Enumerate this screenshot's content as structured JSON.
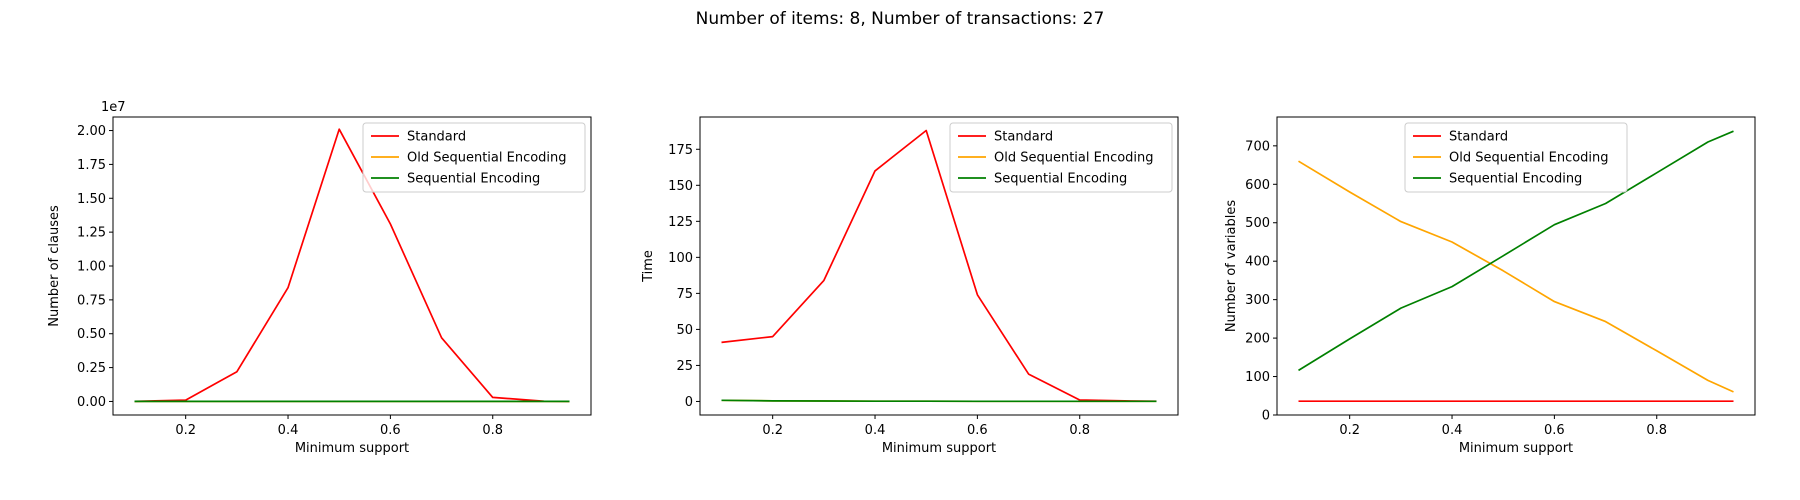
{
  "suptitle": "Number of items: 8, Number of transactions: 27",
  "colors": {
    "Standard": "#ff0000",
    "Old Sequential Encoding": "#ffa500",
    "Sequential Encoding": "#008000"
  },
  "chart_data": [
    {
      "type": "line",
      "xlabel": "Minimum support",
      "ylabel": "Number of clauses",
      "offset_text": "1e7",
      "xlim": [
        0.058,
        0.992
      ],
      "ylim": [
        -1000000.0,
        21000000.0
      ],
      "xticks": [
        0.2,
        0.4,
        0.6,
        0.8
      ],
      "xticklabels": [
        "0.2",
        "0.4",
        "0.6",
        "0.8"
      ],
      "yticks": [
        0,
        2500000,
        5000000,
        7500000,
        10000000,
        12500000,
        15000000,
        17500000,
        20000000
      ],
      "yticklabels": [
        "0.00",
        "0.25",
        "0.50",
        "0.75",
        "1.00",
        "1.25",
        "1.50",
        "1.75",
        "2.00"
      ],
      "legend_position": "upper right",
      "x": [
        0.1,
        0.2,
        0.3,
        0.4,
        0.5,
        0.6,
        0.7,
        0.8,
        0.9,
        0.95
      ],
      "series": [
        {
          "name": "Standard",
          "color": "#ff0000",
          "values": [
            5000,
            100000,
            2200000,
            8400000,
            20100000,
            13100000,
            4700000,
            300000,
            20000,
            5000
          ]
        },
        {
          "name": "Old Sequential Encoding",
          "color": "#ffa500",
          "values": [
            2000,
            2000,
            2000,
            2000,
            2000,
            2000,
            2000,
            2000,
            2000,
            2000
          ]
        },
        {
          "name": "Sequential Encoding",
          "color": "#008000",
          "values": [
            1000,
            1000,
            1000,
            1000,
            1000,
            1000,
            1000,
            1000,
            1000,
            1000
          ]
        }
      ]
    },
    {
      "type": "line",
      "xlabel": "Minimum support",
      "ylabel": "Time",
      "offset_text": "",
      "xlim": [
        0.058,
        0.992
      ],
      "ylim": [
        -9.4,
        197.4
      ],
      "xticks": [
        0.2,
        0.4,
        0.6,
        0.8
      ],
      "xticklabels": [
        "0.2",
        "0.4",
        "0.6",
        "0.8"
      ],
      "yticks": [
        0,
        25,
        50,
        75,
        100,
        125,
        150,
        175
      ],
      "yticklabels": [
        "0",
        "25",
        "50",
        "75",
        "100",
        "125",
        "150",
        "175"
      ],
      "legend_position": "upper right",
      "x": [
        0.1,
        0.2,
        0.3,
        0.4,
        0.5,
        0.6,
        0.7,
        0.8,
        0.9,
        0.95
      ],
      "series": [
        {
          "name": "Standard",
          "color": "#ff0000",
          "values": [
            41,
            45,
            84,
            160,
            188,
            74,
            19,
            1,
            0.3,
            0.2
          ]
        },
        {
          "name": "Old Sequential Encoding",
          "color": "#ffa500",
          "values": [
            0.8,
            0.4,
            0.3,
            0.2,
            0.2,
            0.1,
            0.1,
            0.1,
            0.1,
            0.1
          ]
        },
        {
          "name": "Sequential Encoding",
          "color": "#008000",
          "values": [
            0.8,
            0.4,
            0.3,
            0.2,
            0.2,
            0.1,
            0.1,
            0.1,
            0.1,
            0.1
          ]
        }
      ]
    },
    {
      "type": "line",
      "xlabel": "Minimum support",
      "ylabel": "Number of variables",
      "offset_text": "",
      "xlim": [
        0.058,
        0.992
      ],
      "ylim": [
        0,
        775
      ],
      "xticks": [
        0.2,
        0.4,
        0.6,
        0.8
      ],
      "xticklabels": [
        "0.2",
        "0.4",
        "0.6",
        "0.8"
      ],
      "yticks": [
        0,
        100,
        200,
        300,
        400,
        500,
        600,
        700
      ],
      "yticklabels": [
        "0",
        "100",
        "200",
        "300",
        "400",
        "500",
        "600",
        "700"
      ],
      "legend_position": "upper center",
      "x": [
        0.1,
        0.2,
        0.3,
        0.4,
        0.5,
        0.6,
        0.7,
        0.8,
        0.9,
        0.95
      ],
      "series": [
        {
          "name": "Standard",
          "color": "#ff0000",
          "values": [
            36,
            36,
            36,
            36,
            36,
            36,
            36,
            36,
            36,
            36
          ]
        },
        {
          "name": "Old Sequential Encoding",
          "color": "#ffa500",
          "values": [
            660,
            580,
            503,
            450,
            375,
            295,
            243,
            167,
            90,
            60
          ]
        },
        {
          "name": "Sequential Encoding",
          "color": "#008000",
          "values": [
            116,
            198,
            278,
            334,
            414,
            495,
            550,
            630,
            710,
            738
          ]
        }
      ]
    }
  ]
}
